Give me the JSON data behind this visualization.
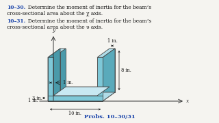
{
  "title1_bold": "10–30.",
  "title1_rest": "  Determine the moment of inertia for the beam’s",
  "title1_line2": "cross-sectional area about the χ axis.",
  "title2_bold": "10–31.",
  "title2_rest": "  Determine the moment of inertia for the beam’s",
  "title2_line2": "cross-sectional area about the υ axis.",
  "caption": "Probs. 10–30/31",
  "bg_color": "#f5f4f0",
  "beam_front": "#7ec8d8",
  "beam_top": "#b0dce8",
  "beam_side": "#5aaabb",
  "beam_inner": "#c8e8f2",
  "beam_back": "#4a9aaa",
  "edge_color": "#444444",
  "dim_color": "#111111",
  "axis_color": "#333333",
  "text_color": "#111111",
  "bold_color": "#1a44aa"
}
